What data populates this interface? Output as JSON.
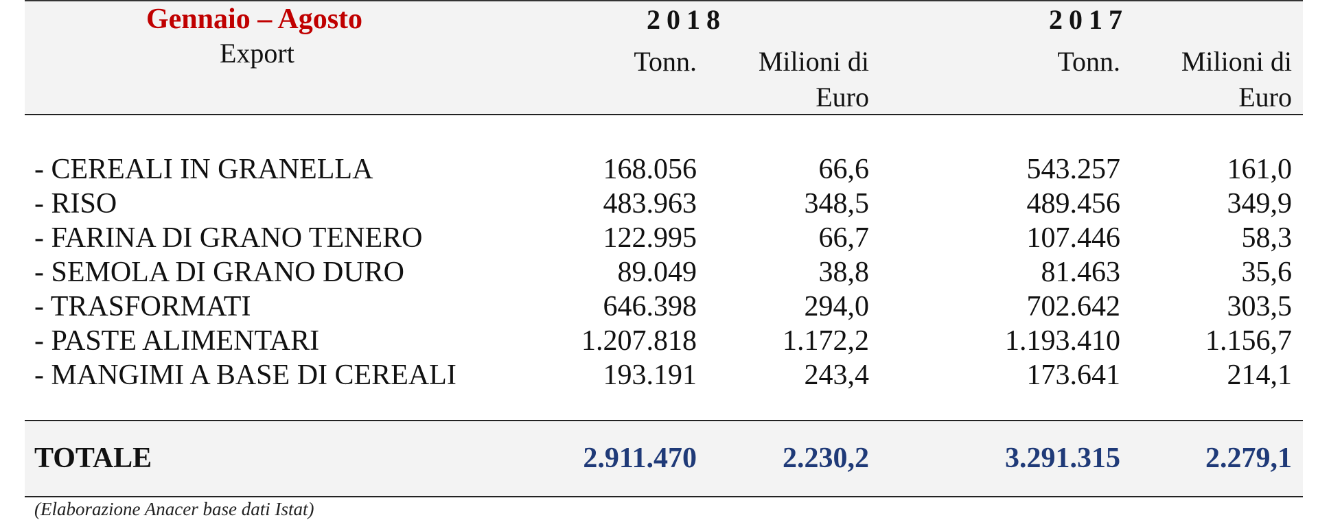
{
  "header": {
    "period": "Gennaio – Agosto",
    "section": "Export",
    "years": [
      "2018",
      "2017"
    ],
    "col_tonn": "Tonn.",
    "col_euro_line1": "Milioni di",
    "col_euro_line2": "Euro"
  },
  "rows": [
    {
      "label": "- CEREALI IN GRANELLA",
      "t2018": "168.056",
      "e2018": "66,6",
      "t2017": "543.257",
      "e2017": "161,0"
    },
    {
      "label": "- RISO",
      "t2018": "483.963",
      "e2018": "348,5",
      "t2017": "489.456",
      "e2017": "349,9"
    },
    {
      "label": "- FARINA DI GRANO TENERO",
      "t2018": "122.995",
      "e2018": "66,7",
      "t2017": "107.446",
      "e2017": "58,3"
    },
    {
      "label": "- SEMOLA DI GRANO DURO",
      "t2018": "89.049",
      "e2018": "38,8",
      "t2017": "81.463",
      "e2017": "35,6"
    },
    {
      "label": "- TRASFORMATI",
      "t2018": "646.398",
      "e2018": "294,0",
      "t2017": "702.642",
      "e2017": "303,5"
    },
    {
      "label": "- PASTE ALIMENTARI",
      "t2018": "1.207.818",
      "e2018": "1.172,2",
      "t2017": "1.193.410",
      "e2017": "1.156,7"
    },
    {
      "label": "- MANGIMI A BASE DI CEREALI",
      "t2018": "193.191",
      "e2018": "243,4",
      "t2017": "173.641",
      "e2017": "214,1"
    }
  ],
  "total": {
    "label": "TOTALE",
    "t2018": "2.911.470",
    "e2018": "2.230,2",
    "t2017": "3.291.315",
    "e2017": "2.279,1"
  },
  "source": "(Elaborazione Anacer base dati Istat)",
  "colors": {
    "period": "#c00000",
    "total_values": "#1f3a78",
    "header_bg": "#f3f3f3"
  }
}
